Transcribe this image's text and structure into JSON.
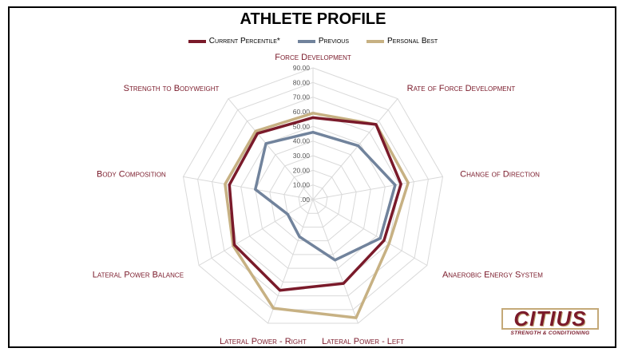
{
  "chart_data": {
    "type": "radar",
    "title": "ATHLETE PROFILE",
    "axes": [
      "Force Development",
      "Rate of Force Development",
      "Change of Direction",
      "Anaerobic Energy System",
      "Lateral Power - Left",
      "Lateral Power - Right",
      "Lateral Power Balance",
      "Body Composition",
      "Strength to Bodyweight"
    ],
    "rlim": [
      0,
      90
    ],
    "ticks": [
      0,
      10,
      20,
      30,
      40,
      50,
      60,
      70,
      80,
      90
    ],
    "tick_labels": [
      ".00",
      "10.00",
      "20.00",
      "30.00",
      "40.00",
      "50.00",
      "60.00",
      "70.00",
      "80.00",
      "90.00"
    ],
    "series": [
      {
        "name": "Current Percentile*",
        "color": "#7a1a2a",
        "values": [
          56,
          67,
          61,
          56,
          61,
          66,
          62,
          58,
          59
        ]
      },
      {
        "name": "Previous",
        "color": "#71839c",
        "values": [
          46,
          48,
          57,
          53,
          44,
          27,
          20,
          40,
          50
        ]
      },
      {
        "name": "Personal Best",
        "color": "#c7b183",
        "values": [
          59,
          67,
          66,
          60,
          86,
          79,
          63,
          61,
          61
        ]
      }
    ],
    "legend_position": "top"
  },
  "logo": {
    "name": "CITIUS",
    "tagline": "STRENGTH & CONDITIONING"
  }
}
